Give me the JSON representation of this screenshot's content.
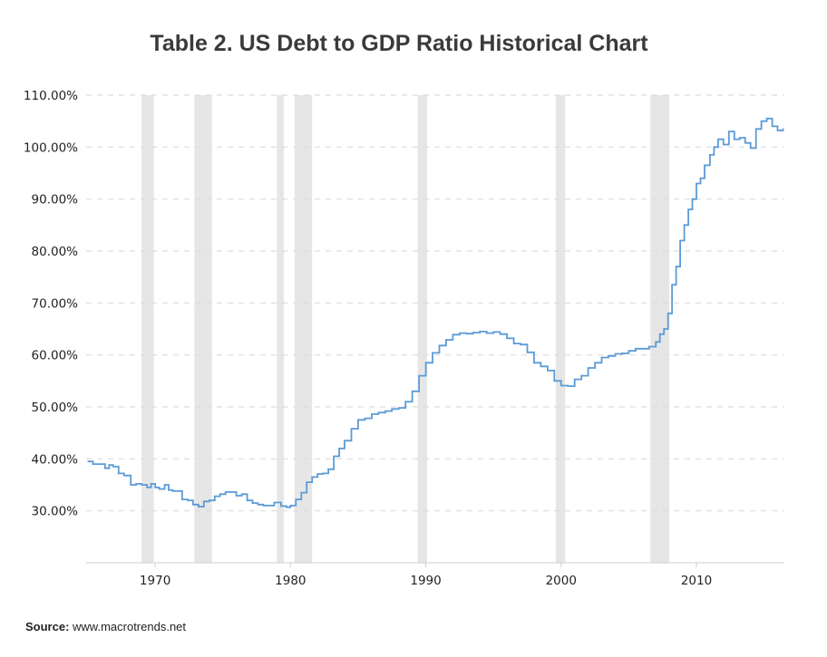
{
  "chart_data": {
    "type": "line",
    "title": "Table 2. US Debt to GDP Ratio Historical Chart",
    "xlabel": "",
    "ylabel": "",
    "xlim": [
      1964.9,
      2016.5
    ],
    "ylim": [
      20,
      110
    ],
    "y_ticks": [
      30,
      40,
      50,
      60,
      70,
      80,
      90,
      100,
      110
    ],
    "y_tick_labels": [
      "30.00%",
      "40.00%",
      "50.00%",
      "60.00%",
      "70.00%",
      "80.00%",
      "90.00%",
      "100.00%",
      "110.00%"
    ],
    "x_ticks": [
      1970,
      1980,
      1990,
      2000,
      2010
    ],
    "x_tick_labels": [
      "1970",
      "1980",
      "1990",
      "2000",
      "2010"
    ],
    "grid": "horizontal dashed",
    "line_color": "#5b9bd5",
    "recession_color": "#e6e6e6",
    "recessions": [
      [
        1969.0,
        1969.9
      ],
      [
        1972.9,
        1974.2
      ],
      [
        1979.0,
        1979.5
      ],
      [
        1980.3,
        1981.6
      ],
      [
        1989.4,
        1990.1
      ],
      [
        1999.6,
        2000.3
      ],
      [
        2006.6,
        2008.0
      ]
    ],
    "series": [
      {
        "x": [
          1965.0,
          1965.4,
          1966.0,
          1966.3,
          1966.6,
          1966.9,
          1967.3,
          1967.7,
          1968.2,
          1968.6,
          1969.0,
          1969.4,
          1969.7,
          1970.0,
          1970.3,
          1970.7,
          1971.0,
          1971.3,
          1971.6,
          1972.0,
          1972.4,
          1972.8,
          1973.2,
          1973.6,
          1974.0,
          1974.4,
          1974.8,
          1975.2,
          1975.6,
          1976.0,
          1976.4,
          1976.8,
          1977.2,
          1977.6,
          1978.0,
          1978.4,
          1978.8,
          1979.3,
          1979.7,
          1980.0,
          1980.4,
          1980.8,
          1981.2,
          1981.6,
          1982.0,
          1982.4,
          1982.8,
          1983.2,
          1983.6,
          1984.0,
          1984.5,
          1985.0,
          1985.5,
          1986.0,
          1986.5,
          1987.0,
          1987.5,
          1988.0,
          1988.5,
          1989.0,
          1989.5,
          1990.0,
          1990.5,
          1991.0,
          1991.5,
          1992.0,
          1992.5,
          1993.0,
          1993.5,
          1994.0,
          1994.5,
          1995.0,
          1995.5,
          1996.0,
          1996.5,
          1997.0,
          1997.5,
          1998.0,
          1998.5,
          1999.0,
          1999.5,
          2000.0,
          2000.5,
          2001.0,
          2001.5,
          2002.0,
          2002.5,
          2003.0,
          2003.5,
          2004.0,
          2004.5,
          2005.0,
          2005.5,
          2006.0,
          2006.5,
          2007.0,
          2007.3,
          2007.6,
          2007.9,
          2008.2,
          2008.5,
          2008.8,
          2009.1,
          2009.4,
          2009.7,
          2010.0,
          2010.3,
          2010.6,
          2011.0,
          2011.3,
          2011.6,
          2012.0,
          2012.4,
          2012.8,
          2013.2,
          2013.6,
          2014.0,
          2014.4,
          2014.8,
          2015.2,
          2015.6,
          2016.0,
          2016.4
        ],
        "y": [
          39.5,
          39.0,
          39.0,
          38.2,
          38.8,
          38.5,
          37.2,
          36.8,
          35.0,
          35.2,
          35.0,
          34.5,
          35.2,
          34.5,
          34.2,
          35.0,
          34.0,
          33.8,
          33.8,
          32.2,
          32.0,
          31.2,
          30.8,
          31.8,
          32.0,
          32.8,
          33.2,
          33.6,
          33.6,
          32.9,
          33.2,
          32.0,
          31.5,
          31.2,
          31.0,
          31.0,
          31.6,
          30.9,
          30.7,
          31.0,
          32.2,
          33.5,
          35.5,
          36.5,
          37.1,
          37.2,
          38.0,
          40.5,
          42.0,
          43.5,
          45.8,
          47.5,
          47.8,
          48.6,
          48.9,
          49.2,
          49.6,
          49.8,
          51.0,
          53.0,
          56.0,
          58.5,
          60.4,
          61.8,
          62.9,
          63.9,
          64.2,
          64.1,
          64.3,
          64.5,
          64.2,
          64.4,
          64.0,
          63.2,
          62.2,
          62.0,
          60.5,
          58.5,
          57.8,
          57.0,
          55.0,
          54.1,
          54.0,
          55.3,
          56.0,
          57.5,
          58.5,
          59.5,
          59.8,
          60.2,
          60.3,
          60.8,
          61.2,
          61.2,
          61.6,
          62.5,
          64.0,
          65.0,
          68.0,
          73.5,
          77.0,
          82.0,
          85.0,
          88.0,
          90.0,
          93.0,
          94.0,
          96.5,
          98.5,
          100.0,
          101.5,
          100.5,
          103.0,
          101.5,
          101.8,
          100.8,
          99.8,
          103.5,
          105.0,
          105.5,
          104.0,
          103.2,
          103.6
        ]
      }
    ]
  },
  "source": {
    "label": "Source:",
    "text": " www.macrotrends.net"
  }
}
